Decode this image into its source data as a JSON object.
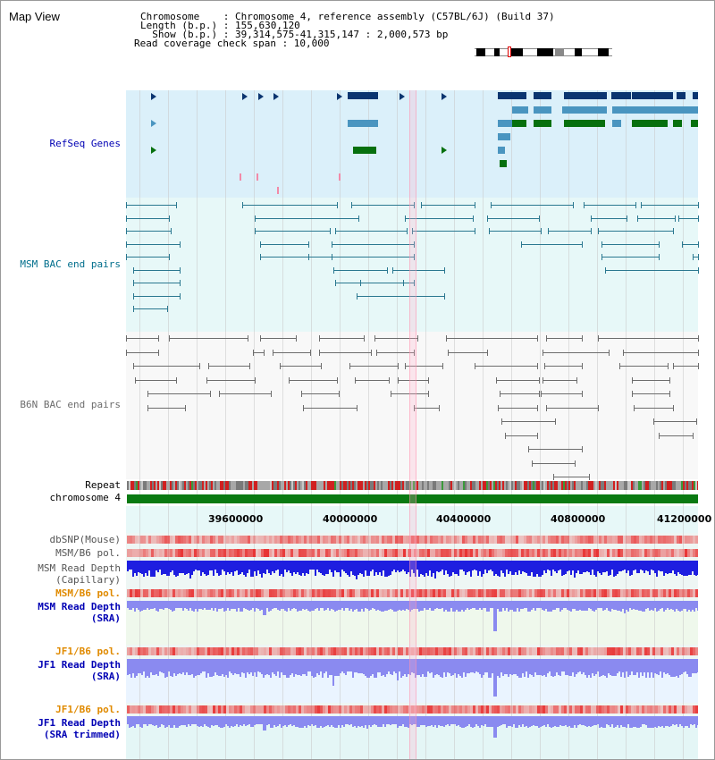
{
  "header": {
    "title": "Map View",
    "chromosome_line": "Chromosome    : Chromosome 4, reference assembly (C57BL/6J) (Build 37)",
    "length_line": "Length (b.p.) : 155,630,120",
    "show_line": "  Show (b.p.) : 39,314,575-41,315,147 : 2,000,573 bp",
    "coverage_line": "Read coverage check span : 10,000"
  },
  "tracks": {
    "refseq": "RefSeq Genes",
    "msm_bac": "MSM BAC end pairs",
    "b6n_bac": "B6N BAC end pairs",
    "repeat": "Repeat",
    "chromosome": "chromosome 4",
    "dbsnp": "dbSNP(Mouse)",
    "msm_b6_pol": "MSM/B6 pol.",
    "msm_depth_cap_1": "MSM Read Depth",
    "msm_depth_cap_2": "(Capillary)",
    "msm_b6_pol_2": "MSM/B6 pol.",
    "msm_depth_sra_1": "MSM Read Depth",
    "msm_depth_sra_2": "(SRA)",
    "jf1_b6_pol": "JF1/B6 pol.",
    "jf1_depth_sra_1": "JF1 Read Depth",
    "jf1_depth_sra_2": "(SRA)",
    "jf1_b6_pol_2": "JF1/B6 pol.",
    "jf1_depth_trim_1": "JF1 Read Depth",
    "jf1_depth_trim_2": "(SRA trimmed)"
  },
  "axis": {
    "ticks": [
      "39600000",
      "40000000",
      "40400000",
      "40800000",
      "41200000"
    ]
  },
  "colors": {
    "refseq_bg": "#dbf0fa",
    "msm_bg": "#e7f8f8",
    "b6n_bg": "#f8f8f8",
    "gene_dark": "#0b3570",
    "gene_mid": "#4a95c0",
    "gene_green": "#06700e",
    "msm_line": "#2a7890",
    "b6n_line": "#6d6d6d",
    "chromosome": "#0a7a12",
    "depth_blue": "#1e1ee0",
    "depth_light": "#8a8af0",
    "pol_red": "#e83030",
    "label_blue": "#0000b4",
    "label_orange": "#e08a00",
    "label_teal": "#006e8c"
  }
}
